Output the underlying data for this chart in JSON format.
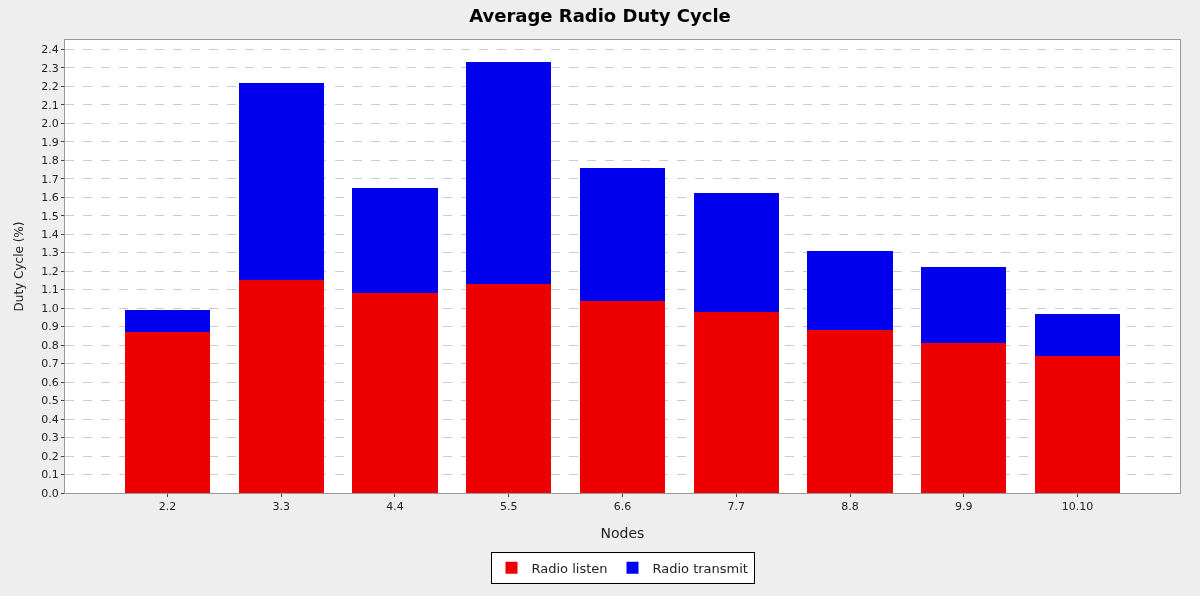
{
  "chart_data": {
    "type": "bar",
    "title": "Average Radio Duty Cycle",
    "xlabel": "Nodes",
    "ylabel": "Duty Cycle (%)",
    "categories": [
      "2.2",
      "3.3",
      "4.4",
      "5.5",
      "6.6",
      "7.7",
      "8.8",
      "9.9",
      "10.10"
    ],
    "stacked": true,
    "series": [
      {
        "name": "Radio listen",
        "color": "#ee0000",
        "values": [
          0.87,
          1.15,
          1.08,
          1.13,
          1.04,
          0.98,
          0.88,
          0.81,
          0.74
        ]
      },
      {
        "name": "Radio transmit",
        "color": "#0000ee",
        "values": [
          0.12,
          1.07,
          0.57,
          1.2,
          0.72,
          0.64,
          0.43,
          0.41,
          0.23
        ]
      }
    ],
    "ylim": [
      0,
      2.45
    ],
    "yticks": [
      {
        "value": 0,
        "label": "0.0"
      },
      0.1,
      0.2,
      0.3,
      0.4,
      0.5,
      0.6,
      0.7,
      0.8,
      0.9,
      {
        "value": 1,
        "label": "1.0"
      },
      1.1,
      1.2,
      1.3,
      1.4,
      1.5,
      1.6,
      1.7,
      1.8,
      1.9,
      {
        "value": 2,
        "label": "2.0"
      },
      2.1,
      2.2,
      2.3,
      2.4
    ],
    "grid": "y",
    "legend": "bottom"
  }
}
